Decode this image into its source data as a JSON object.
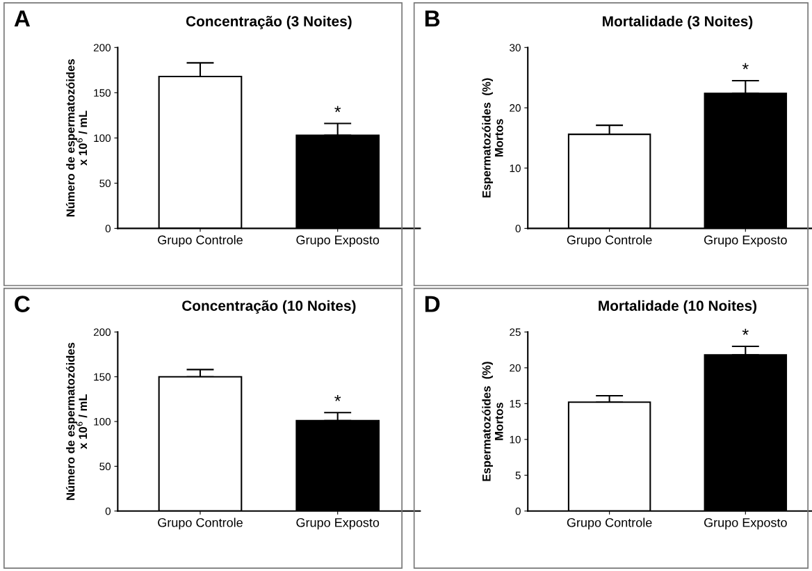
{
  "chart_data": [
    {
      "type": "bar",
      "title": "Concentração (3 Noites)",
      "ylabel": "Número de espermatozóides\nx 10$^{6}$ / mL",
      "categories": [
        "Grupo Controle",
        "Grupo Exposto"
      ],
      "values": [
        168,
        103
      ],
      "colors": [
        "#ffffff",
        "#000000"
      ],
      "errors": [
        [
          168,
          183
        ],
        [
          103,
          116
        ]
      ],
      "ylim": [
        0,
        200
      ],
      "yticks": [
        0,
        50,
        100,
        150,
        200
      ],
      "grid": false,
      "annotations": [
        "A",
        {
          "text": "*",
          "x": "Grupo Exposto",
          "y": 116
        }
      ]
    },
    {
      "type": "bar",
      "title": "Mortalidade (3 Noites)",
      "ylabel": "Espermatozóides  (%)\nMortos",
      "categories": [
        "Grupo Controle",
        "Grupo Exposto"
      ],
      "values": [
        15.6,
        22.4
      ],
      "colors": [
        "#ffffff",
        "#000000"
      ],
      "errors": [
        [
          15.6,
          17.1
        ],
        [
          22.4,
          24.5
        ]
      ],
      "ylim": [
        0,
        30
      ],
      "yticks": [
        0,
        10,
        20,
        30
      ],
      "grid": false,
      "annotations": [
        "B",
        {
          "text": "*",
          "x": "Grupo Exposto",
          "y": 24.5
        }
      ]
    },
    {
      "type": "bar",
      "title": "Concentração (10 Noites)",
      "ylabel": "Número de espermatozóides\nx 10$^{6}$ / mL",
      "categories": [
        "Grupo Controle",
        "Grupo Exposto"
      ],
      "values": [
        150,
        101
      ],
      "colors": [
        "#ffffff",
        "#000000"
      ],
      "errors": [
        [
          150,
          158
        ],
        [
          101,
          110
        ]
      ],
      "ylim": [
        0,
        200
      ],
      "yticks": [
        0,
        50,
        100,
        150,
        200
      ],
      "grid": false,
      "annotations": [
        "C",
        {
          "text": "*",
          "x": "Grupo Exposto",
          "y": 110
        }
      ]
    },
    {
      "type": "bar",
      "title": "Mortalidade (10 Noites)",
      "ylabel": "Espermatozóides  (%)\nMortos",
      "categories": [
        "Grupo Controle",
        "Grupo Exposto"
      ],
      "values": [
        15.2,
        21.8
      ],
      "colors": [
        "#ffffff",
        "#000000"
      ],
      "errors": [
        [
          15.2,
          16.1
        ],
        [
          21.8,
          23.0
        ]
      ],
      "ylim": [
        0,
        25
      ],
      "yticks": [
        0,
        5,
        10,
        15,
        20,
        25
      ],
      "grid": false,
      "annotations": [
        "D",
        {
          "text": "*",
          "x": "Grupo Exposto",
          "y": 23.0
        }
      ]
    }
  ]
}
